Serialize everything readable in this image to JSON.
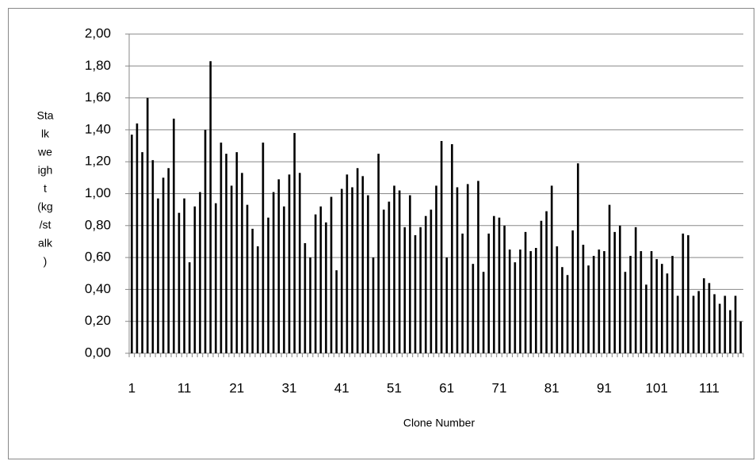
{
  "chart_data": {
    "type": "bar",
    "ylabel": [
      "Sta",
      "lk",
      "we",
      "igh",
      "t",
      "(kg",
      "/st",
      "alk",
      ")"
    ],
    "xlabel": "Clone Number",
    "categories": [
      "1",
      null,
      null,
      null,
      null,
      null,
      null,
      null,
      null,
      null,
      "11",
      null,
      null,
      null,
      null,
      null,
      null,
      null,
      null,
      null,
      "21",
      null,
      null,
      null,
      null,
      null,
      null,
      null,
      null,
      null,
      "31",
      null,
      null,
      null,
      null,
      null,
      null,
      null,
      null,
      null,
      "41",
      null,
      null,
      null,
      null,
      null,
      null,
      null,
      null,
      null,
      "51",
      null,
      null,
      null,
      null,
      null,
      null,
      null,
      null,
      null,
      "61",
      null,
      null,
      null,
      null,
      null,
      null,
      null,
      null,
      null,
      "71",
      null,
      null,
      null,
      null,
      null,
      null,
      null,
      null,
      null,
      "81",
      null,
      null,
      null,
      null,
      null,
      null,
      null,
      null,
      null,
      "91",
      null,
      null,
      null,
      null,
      null,
      null,
      null,
      null,
      null,
      "101",
      null,
      null,
      null,
      null,
      null,
      null,
      null,
      null,
      null,
      "111",
      null,
      null,
      null,
      null,
      null,
      null
    ],
    "values": [
      1.37,
      1.44,
      1.26,
      1.6,
      1.21,
      0.97,
      1.1,
      1.16,
      1.47,
      0.88,
      0.97,
      0.57,
      0.92,
      1.01,
      1.4,
      1.83,
      0.94,
      1.32,
      1.25,
      1.05,
      1.26,
      1.13,
      0.93,
      0.78,
      0.67,
      1.32,
      0.85,
      1.01,
      1.09,
      0.92,
      1.12,
      1.38,
      1.13,
      0.69,
      0.6,
      0.87,
      0.92,
      0.82,
      0.98,
      0.52,
      1.03,
      1.12,
      1.04,
      1.16,
      1.11,
      0.99,
      0.6,
      1.25,
      0.9,
      0.95,
      1.05,
      1.02,
      0.79,
      0.99,
      0.74,
      0.79,
      0.86,
      0.9,
      1.05,
      1.33,
      0.6,
      1.31,
      1.04,
      0.75,
      1.06,
      0.56,
      1.08,
      0.51,
      0.75,
      0.86,
      0.85,
      0.8,
      0.65,
      0.57,
      0.65,
      0.76,
      0.64,
      0.66,
      0.83,
      0.89,
      1.05,
      0.67,
      0.54,
      0.49,
      0.77,
      1.19,
      0.68,
      0.55,
      0.61,
      0.65,
      0.64,
      0.93,
      0.76,
      0.8,
      0.51,
      0.61,
      0.79,
      0.64,
      0.43,
      0.64,
      0.59,
      0.56,
      0.5,
      0.61,
      0.36,
      0.75,
      0.74,
      0.36,
      0.39,
      0.47,
      0.44,
      0.37,
      0.31,
      0.36,
      0.27,
      0.36,
      0.2
    ],
    "color": "#000000",
    "ylim": [
      0,
      2
    ],
    "yticks": [
      {
        "value": 0,
        "label": "0,00"
      },
      {
        "value": 0.2,
        "label": "0,20"
      },
      {
        "value": 0.4,
        "label": "0,40"
      },
      {
        "value": 0.6,
        "label": "0,60"
      },
      {
        "value": 0.8,
        "label": "0,80"
      },
      {
        "value": 1,
        "label": "1,00"
      },
      {
        "value": 1.2,
        "label": "1,20"
      },
      {
        "value": 1.4,
        "label": "1,40"
      },
      {
        "value": 1.6,
        "label": "1,60"
      },
      {
        "value": 1.8,
        "label": "1,80"
      },
      {
        "value": 2,
        "label": "2,00"
      }
    ],
    "grid": true
  }
}
